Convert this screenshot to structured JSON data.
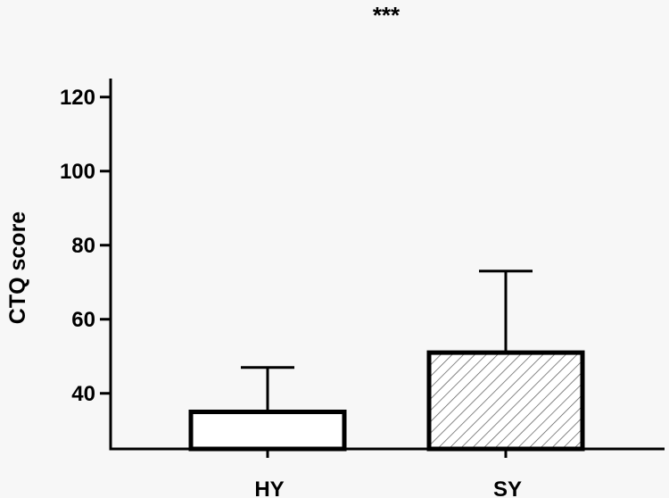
{
  "chart_data": {
    "type": "bar",
    "title": "",
    "xlabel": "",
    "ylabel": "CTQ score",
    "categories": [
      "HY",
      "SY"
    ],
    "values": [
      35,
      51
    ],
    "error_upper": [
      47,
      73
    ],
    "ylim": [
      25,
      125
    ],
    "yticks": [
      40,
      60,
      80,
      100,
      120
    ],
    "significance": "***",
    "bar_fills": [
      "solid-white",
      "diagonal-hatch"
    ],
    "grid": false,
    "legend": "none"
  },
  "colors": {
    "background": "#f7f7f7",
    "bar_fill": "#ffffff",
    "stroke": "#000000",
    "hatch": "#555555"
  }
}
